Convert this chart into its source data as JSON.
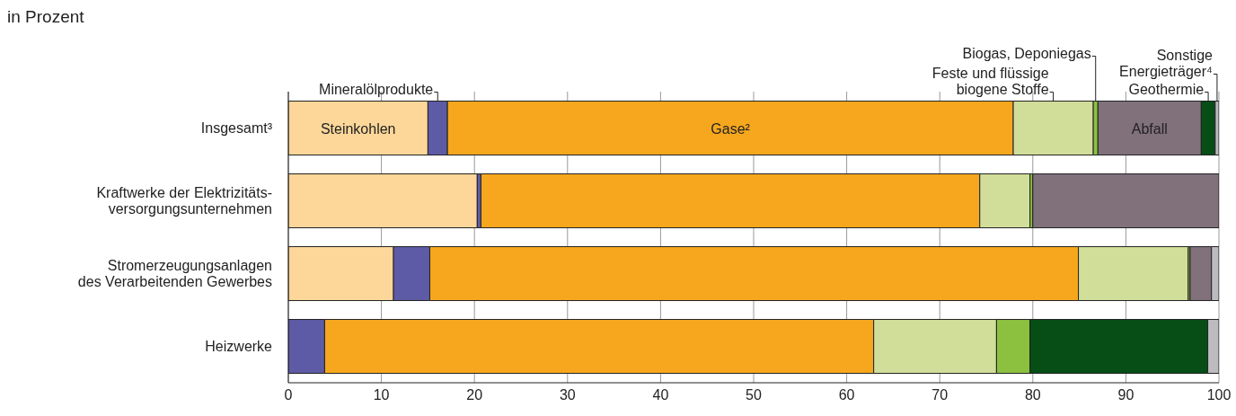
{
  "chart_data": {
    "type": "bar",
    "orientation": "horizontal",
    "stacked": true,
    "subtitle": "in Prozent",
    "categories": [
      "Insgesamt³",
      "Kraftwerke der Elektrizitäts-\nversorgungsunternehmen",
      "Stromerzeugungsanlagen\ndes Verarbeitenden Gewerbes",
      "Heizwerke"
    ],
    "series": [
      {
        "name": "Steinkohlen",
        "color": "#fdd799",
        "values": [
          15.0,
          20.3,
          11.3,
          0
        ]
      },
      {
        "name": "Mineralölprodukte",
        "color": "#5e5ba6",
        "values": [
          2.1,
          0.4,
          3.9,
          3.9
        ]
      },
      {
        "name": "Gase²",
        "color": "#f7a71e",
        "values": [
          60.8,
          53.6,
          69.7,
          59.0
        ]
      },
      {
        "name": "Feste und flüssige biogene Stoffe",
        "color": "#d1de9a",
        "values": [
          8.6,
          5.4,
          11.8,
          13.2
        ]
      },
      {
        "name": "Biogas, Deponiegas",
        "color": "#8bc13f",
        "values": [
          0.5,
          0.3,
          0.2,
          3.6
        ]
      },
      {
        "name": "Abfall",
        "color": "#81717b",
        "values": [
          11.1,
          20.0,
          2.3,
          0
        ]
      },
      {
        "name": "Geothermie",
        "color": "#064d16",
        "values": [
          1.5,
          0,
          0,
          19.1
        ]
      },
      {
        "name": "Sonstige Energieträger⁴",
        "color": "#bcbcc0",
        "values": [
          0.4,
          0,
          0.8,
          1.2
        ]
      }
    ],
    "xlim": [
      0,
      100
    ],
    "xticks": [
      0,
      10,
      20,
      30,
      40,
      50,
      60,
      70,
      80,
      90,
      100
    ],
    "grid": "x",
    "legend": "top"
  }
}
